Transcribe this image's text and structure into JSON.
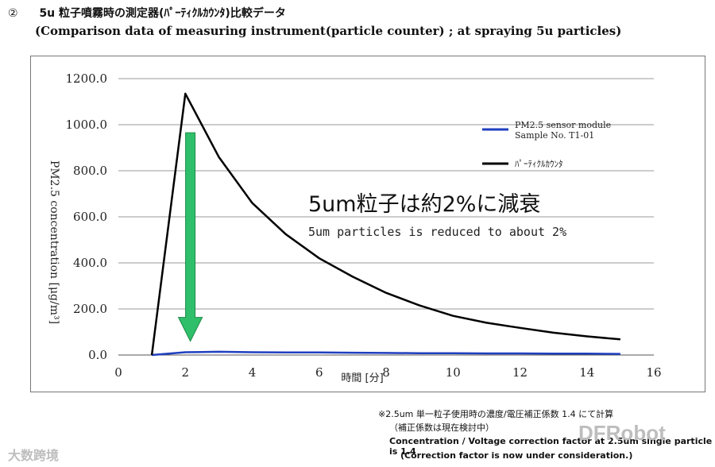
{
  "header": {
    "number": "②",
    "title_jp": "5u 粒子噴霧時の測定器(ﾊﾟｰﾃｨｸﾙｶｳﾝﾀ)比較データ",
    "title_en": "(Comparison data of measuring instrument(particle counter) ; at spraying 5u particles)"
  },
  "chart_data": {
    "type": "line",
    "xlabel": "時間 [分]",
    "ylabel": "PM2.5 concentration [μg/m³]",
    "xlim": [
      0,
      16
    ],
    "ylim": [
      0,
      1200
    ],
    "xticks": [
      "0",
      "2",
      "4",
      "6",
      "8",
      "10",
      "12",
      "14",
      "16"
    ],
    "yticks": [
      "0.0",
      "200.0",
      "400.0",
      "600.0",
      "800.0",
      "1000.0",
      "1200.0"
    ],
    "grid": "horizontal",
    "legend_position": "right",
    "series": [
      {
        "name": "PM2.5 sensor module Sample No. T1-01",
        "color": "#1f3fbf",
        "x": [
          1,
          2,
          3,
          4,
          5,
          6,
          7,
          8,
          9,
          10,
          11,
          12,
          13,
          14,
          15
        ],
        "y": [
          0,
          12,
          14,
          12,
          11,
          11,
          10,
          9,
          8,
          8,
          7,
          7,
          6,
          6,
          5
        ]
      },
      {
        "name": "ﾊﾟｰﾃｨｸﾙｶｳﾝﾀ",
        "color": "#000000",
        "x": [
          1,
          2,
          3,
          4,
          5,
          6,
          7,
          8,
          9,
          10,
          11,
          12,
          13,
          14,
          15
        ],
        "y": [
          0,
          1135,
          860,
          660,
          525,
          420,
          340,
          270,
          215,
          170,
          140,
          118,
          97,
          81,
          68
        ]
      }
    ],
    "annotation": {
      "arrow_color": "#2fbf6a",
      "arrow_from": {
        "x": 2.15,
        "y": 965
      },
      "arrow_to": {
        "x": 2.15,
        "y": 60
      },
      "text_jp": "5um粒子は約2%に減衰",
      "text_en": "5um particles is reduced to about 2%"
    }
  },
  "notes": {
    "jp_line1": "※2.5um 単一粒子使用時の濃度/電圧補正係数 1.4 にて計算",
    "jp_line2": "（補正係数は現在検討中）",
    "en_line1": "Concentration / Voltage correction factor at 2.5um single particle is 1.4",
    "en_line2": "(Correction factor is now under consideration.)"
  },
  "watermarks": {
    "left": "大数跨境",
    "right": "DFRobot"
  }
}
